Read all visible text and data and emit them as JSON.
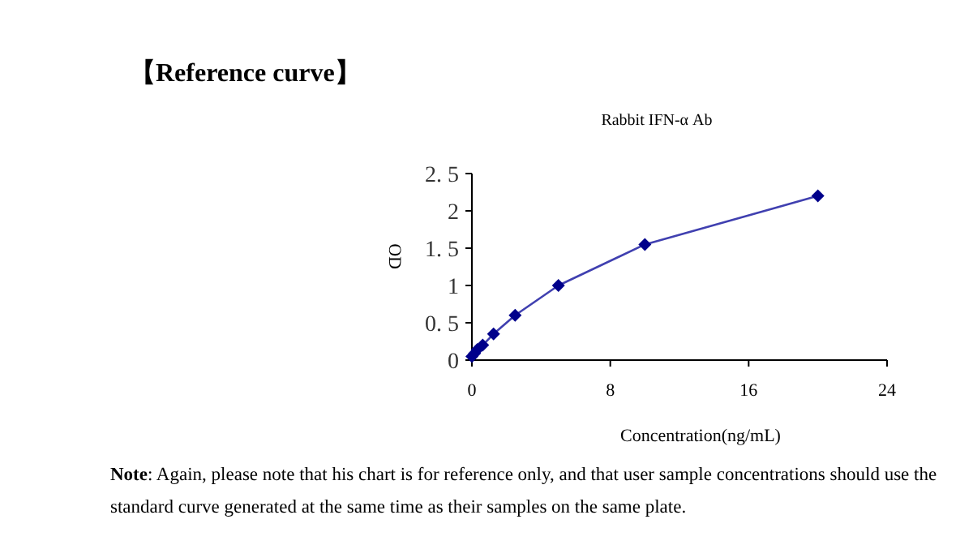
{
  "chart_data": {
    "type": "line",
    "title": "【Reference curve】",
    "subtitle": "Rabbit IFN-α Ab",
    "xlabel": "Concentration(ng/mL)",
    "ylabel": "OD",
    "annotations": [
      "**Note**: Again, please note that his chart is for reference only, and that user sample concentrations should use the standard curve generated at the same time as their samples on the same plate."
    ],
    "series": [
      {
        "color": "#00008b",
        "x": [
          0,
          0.156,
          0.3125,
          0.625,
          1.25,
          2.5,
          5,
          10,
          20
        ],
        "values": [
          0.05,
          0.09,
          0.14,
          0.2,
          0.35,
          0.6,
          1.0,
          1.55,
          2.2
        ]
      }
    ],
    "xlim": [
      0,
      24
    ],
    "xticks": [
      0,
      8,
      16,
      24
    ],
    "ylim": [
      0,
      2.5
    ],
    "yticks": [
      0,
      {
        "value": 0.5,
        "label": "0. 5"
      },
      1,
      {
        "value": 1.5,
        "label": "1. 5"
      },
      2,
      {
        "value": 2.5,
        "label": "2. 5"
      }
    ],
    "marker": "diamond",
    "line_style": "solid",
    "grid": false
  }
}
